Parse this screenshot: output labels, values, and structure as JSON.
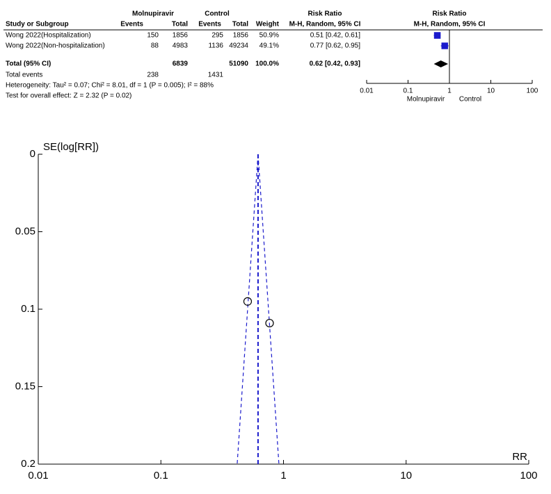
{
  "chart_data": [
    {
      "type": "forest",
      "group_headers": [
        "Molnupiravir",
        "Control",
        "Risk Ratio",
        "Risk Ratio"
      ],
      "columns": [
        "Study or Subgroup",
        "Events",
        "Total",
        "Events",
        "Total",
        "Weight",
        "M-H, Random, 95% CI",
        "M-H, Random, 95% CI"
      ],
      "studies": [
        {
          "name": "Wong 2022(Hospitalization)",
          "events_1": 150,
          "total_1": 1856,
          "events_2": 295,
          "total_2": 1856,
          "weight": {
            "value": 50.9,
            "label": "50.9%"
          },
          "rr": 0.51,
          "ci": [
            0.42,
            0.61
          ],
          "ci_label": "0.51 [0.42, 0.61]"
        },
        {
          "name": "Wong 2022(Non-hospitalization)",
          "events_1": 88,
          "total_1": 4983,
          "events_2": 1136,
          "total_2": 49234,
          "weight": {
            "value": 49.1,
            "label": "49.1%"
          },
          "rr": 0.77,
          "ci": [
            0.62,
            0.95
          ],
          "ci_label": "0.77 [0.62, 0.95]"
        }
      ],
      "total": {
        "name": "Total (95% CI)",
        "total_1": 6839,
        "total_2": 51090,
        "weight": {
          "value": 100.0,
          "label": "100.0%"
        },
        "rr": 0.62,
        "ci": [
          0.42,
          0.93
        ],
        "ci_label": "0.62 [0.42, 0.93]"
      },
      "total_events": {
        "name": "Total events",
        "events_1": 238,
        "events_2": 1431
      },
      "heterogeneity": "Heterogeneity: Tau² = 0.07; Chi² = 8.01, df = 1 (P = 0.005); I² = 88%",
      "overall_effect": "Test for overall effect: Z = 2.32 (P = 0.02)",
      "log_x": true,
      "xlim": [
        0.01,
        100
      ],
      "xticks": [
        0.01,
        0.1,
        1,
        10,
        100
      ],
      "x_labels": [
        "Molnupiravir",
        "Control"
      ],
      "color": "#1a1acc"
    },
    {
      "type": "funnel",
      "y_label": "SE(log[RR])",
      "x_label": "RR",
      "x": [
        0.51,
        0.77
      ],
      "values": [
        0.095,
        0.109
      ],
      "log_x": true,
      "xlim": [
        0.01,
        100
      ],
      "xticks": [
        0.01,
        0.1,
        1,
        10,
        100
      ],
      "ylim": [
        0,
        0.2
      ],
      "yticks": [
        0,
        0.05,
        0.1,
        0.15,
        0.2
      ],
      "y_inverted": true,
      "color": "#1a1acc"
    }
  ]
}
